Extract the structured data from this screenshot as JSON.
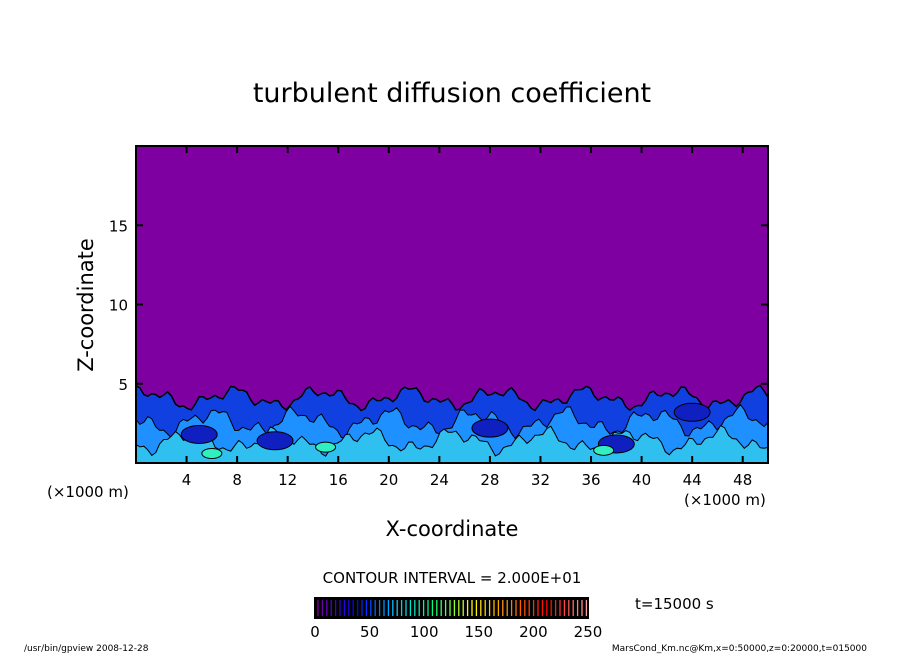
{
  "chart_data": {
    "type": "heatmap",
    "title": "turbulent diffusion coefficient",
    "xlabel": "X-coordinate",
    "ylabel": "Z-coordinate",
    "x_unit": "(×1000 m)",
    "z_unit": "(×1000 m)",
    "xlim": [
      0,
      50
    ],
    "ylim": [
      0,
      20
    ],
    "x_ticks": [
      4,
      8,
      12,
      16,
      20,
      24,
      28,
      32,
      36,
      40,
      44,
      48
    ],
    "y_ticks": [
      5,
      10,
      15
    ],
    "contour_interval": "CONTOUR INTERVAL = 2.000E+01",
    "colorbar": {
      "min": 0,
      "max": 250,
      "ticks": [
        0,
        50,
        100,
        150,
        200,
        250
      ],
      "colors": [
        "#7f00a0",
        "#0000ff",
        "#00c8ff",
        "#00ff80",
        "#ffff00",
        "#ff8000",
        "#ff0000",
        "#ffa0a0"
      ]
    },
    "background_color": "#7f00a0",
    "time_label": "t=15000 s",
    "description_layer_top_z": 4.5
  },
  "footer": {
    "left": "/usr/bin/gpview  2008-12-28",
    "right": "MarsCond_Km.nc@Km,x=0:50000,z=0:20000,t=015000"
  }
}
